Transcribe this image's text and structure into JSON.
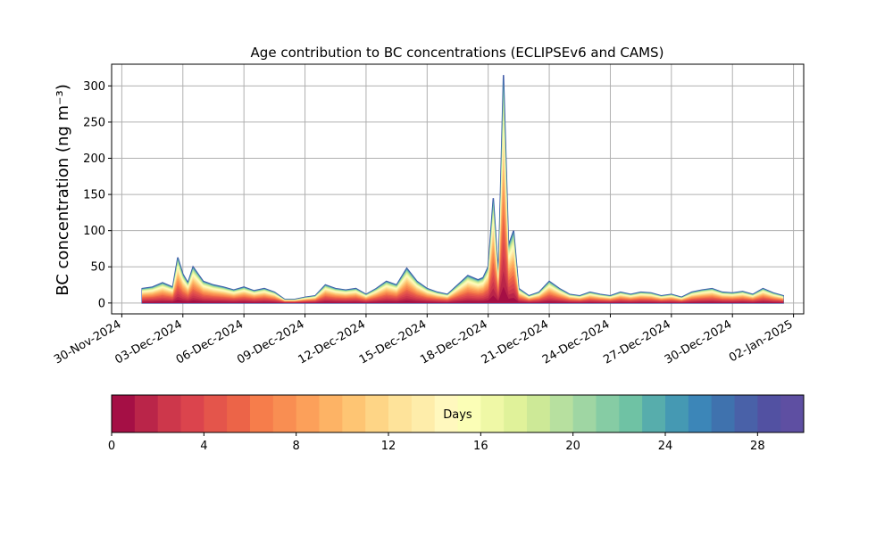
{
  "chart_data": {
    "type": "area",
    "title": "Age contribution to BC concentrations (ECLIPSEv6 and CAMS)",
    "ylabel": "BC concentration (ng m⁻³)",
    "xlabel": "",
    "xlim": [
      "2024-11-29T12:00",
      "2025-01-02T12:00"
    ],
    "ylim": [
      -15,
      330
    ],
    "grid": true,
    "x_ticks": [
      "30-Nov-2024",
      "03-Dec-2024",
      "06-Dec-2024",
      "09-Dec-2024",
      "12-Dec-2024",
      "15-Dec-2024",
      "18-Dec-2024",
      "21-Dec-2024",
      "24-Dec-2024",
      "27-Dec-2024",
      "30-Dec-2024",
      "02-Jan-2025"
    ],
    "y_ticks": [
      0,
      50,
      100,
      150,
      200,
      250,
      300
    ],
    "stack_order": "age 0 days at bottom (red) to 30 days at top (purple-blue)",
    "total_concentration": {
      "x": [
        "2024-12-01T00:00",
        "2024-12-01T12:00",
        "2024-12-02T00:00",
        "2024-12-02T12:00",
        "2024-12-02T18:00",
        "2024-12-03T00:00",
        "2024-12-03T06:00",
        "2024-12-03T12:00",
        "2024-12-04T00:00",
        "2024-12-04T12:00",
        "2024-12-05T00:00",
        "2024-12-05T12:00",
        "2024-12-06T00:00",
        "2024-12-06T12:00",
        "2024-12-07T00:00",
        "2024-12-07T12:00",
        "2024-12-08T00:00",
        "2024-12-08T12:00",
        "2024-12-09T00:00",
        "2024-12-09T12:00",
        "2024-12-10T00:00",
        "2024-12-10T12:00",
        "2024-12-11T00:00",
        "2024-12-11T12:00",
        "2024-12-12T00:00",
        "2024-12-12T12:00",
        "2024-12-13T00:00",
        "2024-12-13T12:00",
        "2024-12-14T00:00",
        "2024-12-14T12:00",
        "2024-12-15T00:00",
        "2024-12-15T12:00",
        "2024-12-16T00:00",
        "2024-12-16T12:00",
        "2024-12-17T00:00",
        "2024-12-17T12:00",
        "2024-12-17T18:00",
        "2024-12-18T00:00",
        "2024-12-18T06:00",
        "2024-12-18T12:00",
        "2024-12-18T18:00",
        "2024-12-19T00:00",
        "2024-12-19T06:00",
        "2024-12-19T12:00",
        "2024-12-20T00:00",
        "2024-12-20T12:00",
        "2024-12-21T00:00",
        "2024-12-21T12:00",
        "2024-12-22T00:00",
        "2024-12-22T12:00",
        "2024-12-23T00:00",
        "2024-12-23T12:00",
        "2024-12-24T00:00",
        "2024-12-24T12:00",
        "2024-12-25T00:00",
        "2024-12-25T12:00",
        "2024-12-26T00:00",
        "2024-12-26T12:00",
        "2024-12-27T00:00",
        "2024-12-27T12:00",
        "2024-12-28T00:00",
        "2024-12-28T12:00",
        "2024-12-29T00:00",
        "2024-12-29T12:00",
        "2024-12-30T00:00",
        "2024-12-30T12:00",
        "2024-12-31T00:00",
        "2024-12-31T12:00",
        "2025-01-01T00:00",
        "2025-01-01T12:00"
      ],
      "y": [
        20,
        22,
        28,
        22,
        63,
        40,
        28,
        50,
        30,
        25,
        22,
        18,
        22,
        17,
        20,
        15,
        5,
        5,
        8,
        10,
        25,
        20,
        18,
        20,
        12,
        20,
        30,
        25,
        48,
        30,
        20,
        15,
        12,
        25,
        38,
        32,
        35,
        50,
        145,
        40,
        315,
        80,
        100,
        20,
        10,
        15,
        30,
        20,
        12,
        10,
        15,
        12,
        10,
        15,
        12,
        15,
        14,
        10,
        12,
        8,
        15,
        18,
        20,
        15,
        14,
        16,
        12,
        20,
        14,
        10
      ],
      "unit": "ng m⁻³"
    },
    "colorbar": {
      "label": "Days",
      "min": 0,
      "max": 30,
      "levels": 30,
      "ticks": [
        0,
        4,
        8,
        12,
        16,
        20,
        24,
        28
      ],
      "colormap": "Spectral",
      "colors": [
        "#a50f45",
        "#ba2549",
        "#cd374b",
        "#db444d",
        "#e4554b",
        "#ec6448",
        "#f67d4b",
        "#f98e52",
        "#fca05a",
        "#fdb365",
        "#fec573",
        "#fed586",
        "#fee39a",
        "#feedaa",
        "#fff8be",
        "#fbfeb6",
        "#eff8a6",
        "#e0f29a",
        "#cde997",
        "#b7e09f",
        "#9fd6a3",
        "#86cca4",
        "#6fc2a4",
        "#57adac",
        "#4599b3",
        "#3c86b8",
        "#3f72ae",
        "#4961a8",
        "#5251a2",
        "#5e4fa2"
      ]
    }
  }
}
